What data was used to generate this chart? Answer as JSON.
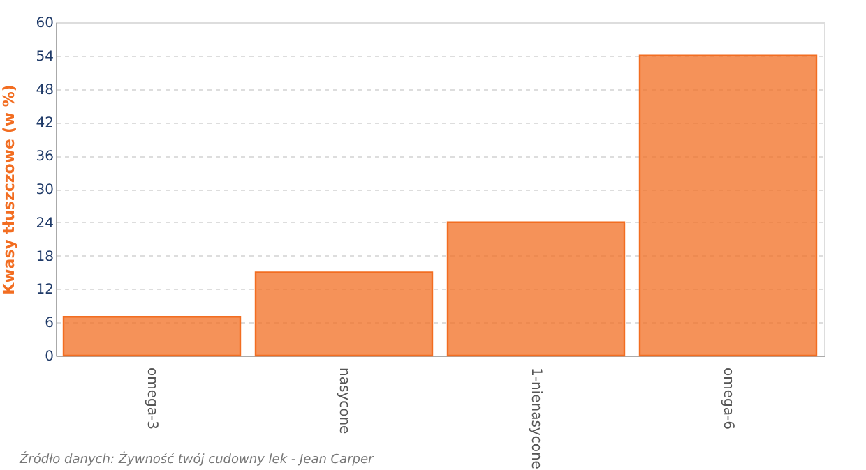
{
  "chart_data": {
    "type": "bar",
    "ylabel": "Kwasy tłuszczowe (w %)",
    "categories": [
      "omega-3",
      "nasycone",
      "1-nienasycone",
      "omega-6"
    ],
    "values": [
      7,
      15,
      24,
      54
    ],
    "color": "#f26d21",
    "ylim": [
      0,
      60
    ],
    "yticks": [
      0,
      6,
      12,
      18,
      24,
      30,
      36,
      42,
      48,
      54,
      60
    ],
    "grid": "y",
    "annotations": [
      "Źródło danych: Żywność twój cudowny lek - Jean Carper"
    ]
  }
}
